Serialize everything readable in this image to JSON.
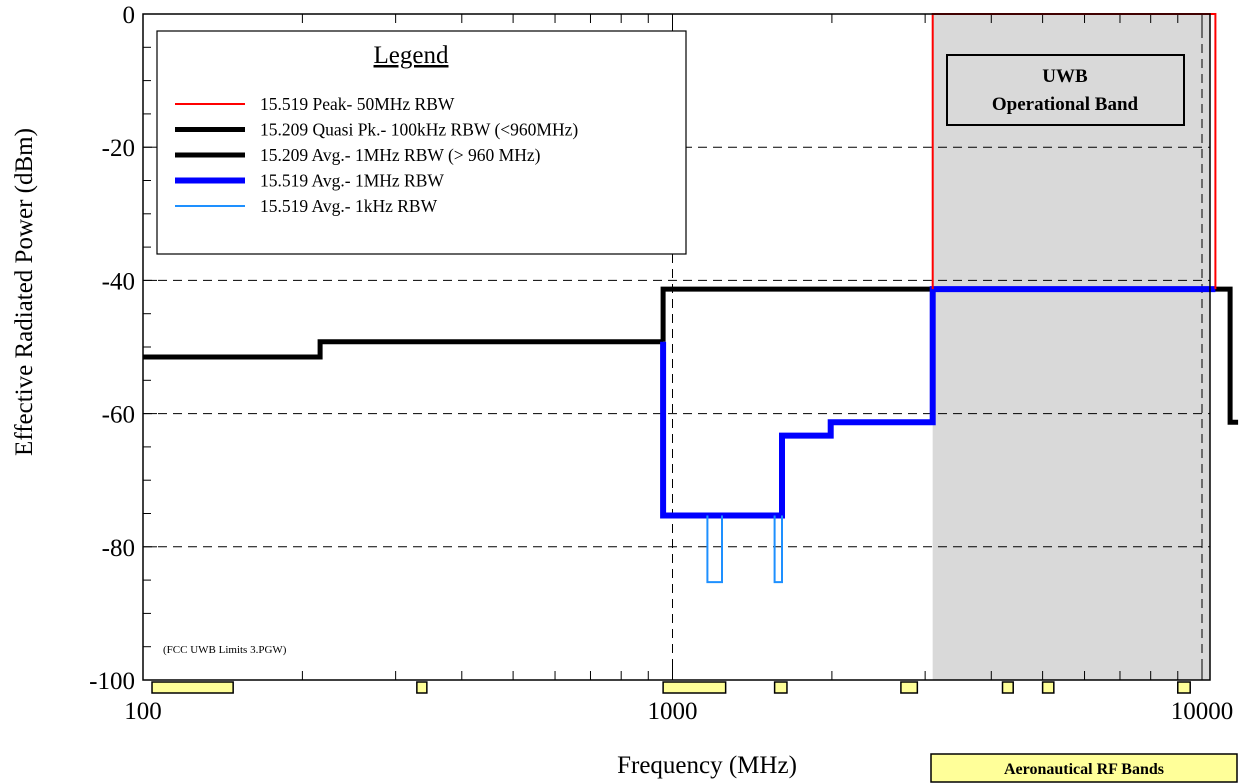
{
  "chart_data": {
    "type": "line",
    "x_scale": "log",
    "xlim": [
      100,
      11000
    ],
    "ylim": [
      -100,
      0
    ],
    "x_ticks": [
      100,
      1000,
      10000
    ],
    "x_tick_labels": [
      "100",
      "1000",
      "10000"
    ],
    "y_ticks": [
      0,
      -20,
      -40,
      -60,
      -80,
      -100
    ],
    "y_tick_labels": [
      "0",
      "-20",
      "-40",
      "-60",
      "-80",
      "-100"
    ],
    "xlabel": "Frequency (MHz)",
    "ylabel": "Effective Radiated Power (dBm)",
    "grid": "dashed",
    "legend": {
      "title": "Legend",
      "placement": "top-left",
      "entries": [
        {
          "label": "15.519 Peak- 50MHz RBW",
          "color": "#ff0000",
          "width": "thin"
        },
        {
          "label": "15.209 Quasi Pk.- 100kHz RBW (<960MHz)",
          "color": "#000000",
          "width": "thick"
        },
        {
          "label": "15.209 Avg.- 1MHz RBW (> 960 MHz)",
          "color": "#000000",
          "width": "thick"
        },
        {
          "label": "15.519 Avg.- 1MHz RBW",
          "color": "#0000ff",
          "width": "thick"
        },
        {
          "label": "15.519 Avg.- 1kHz RBW",
          "color": "#1e90ff",
          "width": "thin"
        }
      ]
    },
    "series": [
      {
        "name": "15.209 Quasi Pk.- 100kHz RBW (<960MHz)",
        "color": "#000000",
        "stroke": 5,
        "x": [
          100,
          216,
          216,
          960
        ],
        "y": [
          -51.5,
          -51.5,
          -49.2,
          -49.2
        ]
      },
      {
        "name": "15.209 Avg.- 1MHz RBW (> 960 MHz)",
        "color": "#000000",
        "stroke": 5,
        "x": [
          960,
          960,
          11300,
          11300,
          11700
        ],
        "y": [
          -49.2,
          -41.3,
          -41.3,
          -61.3,
          -61.3
        ]
      },
      {
        "name": "15.519 Avg.- 1MHz RBW",
        "color": "#0000ff",
        "stroke": 6,
        "x": [
          960,
          960,
          1610,
          1610,
          1990,
          1990,
          3100,
          3100,
          10600
        ],
        "y": [
          -49.2,
          -75.3,
          -75.3,
          -63.3,
          -63.3,
          -61.3,
          -61.3,
          -41.3,
          -41.3
        ]
      },
      {
        "name": "15.519 Avg.- 1kHz RBW",
        "color": "#1e90ff",
        "stroke": 2,
        "x": [
          1164,
          1164,
          1240,
          1240
        ],
        "y": [
          -75.3,
          -85.3,
          -85.3,
          -75.3
        ]
      },
      {
        "name": "15.519 Avg.- 1kHz RBW (2)",
        "color": "#1e90ff",
        "stroke": 2,
        "x": [
          1559,
          1559,
          1610,
          1610
        ],
        "y": [
          -75.3,
          -85.3,
          -85.3,
          -75.3
        ]
      },
      {
        "name": "15.519 Peak- 50MHz RBW",
        "color": "#ff0000",
        "stroke": 2,
        "x": [
          3100,
          3100,
          10600,
          10600
        ],
        "y": [
          -41.3,
          0,
          0,
          -41.3
        ]
      }
    ],
    "shaded_band": {
      "x_start": 3100,
      "x_end": 11000,
      "y_start": -100,
      "y_end": 0,
      "color": "#d9d9d9"
    },
    "aeronautical_bands": [
      [
        104,
        148
      ],
      [
        329,
        335
      ],
      [
        960,
        1260
      ],
      [
        1559,
        1645
      ],
      [
        2700,
        2900
      ],
      [
        4200,
        4400
      ],
      [
        5000,
        5250
      ],
      [
        9000,
        9500
      ]
    ],
    "annotations": {
      "operational_band_line1": "UWB",
      "operational_band_line2": "Operational Band",
      "aeronautical_label": "Aeronautical RF Bands",
      "file_note": "(FCC UWB Limits 3.PGW)"
    }
  }
}
